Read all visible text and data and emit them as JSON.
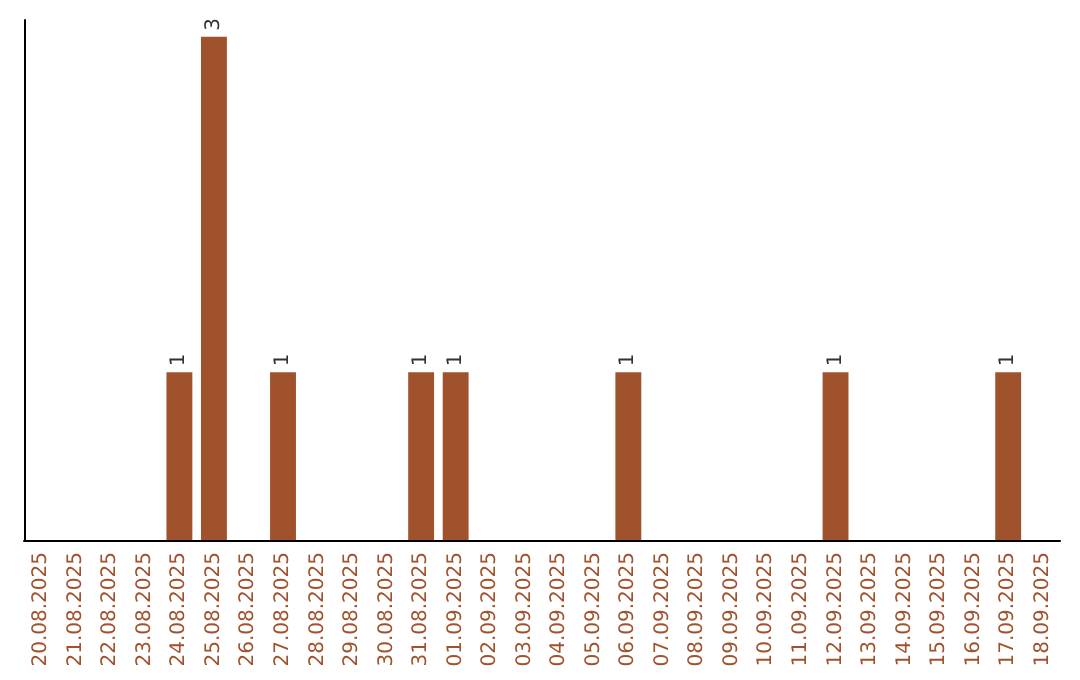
{
  "chart_data": {
    "type": "bar",
    "categories": [
      "20.08.2025",
      "21.08.2025",
      "22.08.2025",
      "23.08.2025",
      "24.08.2025",
      "25.08.2025",
      "26.08.2025",
      "27.08.2025",
      "28.08.2025",
      "29.08.2025",
      "30.08.2025",
      "31.08.2025",
      "01.09.2025",
      "02.09.2025",
      "03.09.2025",
      "04.09.2025",
      "05.09.2025",
      "06.09.2025",
      "07.09.2025",
      "08.09.2025",
      "09.09.2025",
      "10.09.2025",
      "11.09.2025",
      "12.09.2025",
      "13.09.2025",
      "14.09.2025",
      "15.09.2025",
      "16.09.2025",
      "17.09.2025",
      "18.09.2025"
    ],
    "values": [
      0,
      0,
      0,
      0,
      1,
      3,
      0,
      1,
      0,
      0,
      0,
      1,
      1,
      0,
      0,
      0,
      0,
      1,
      0,
      0,
      0,
      0,
      0,
      1,
      0,
      0,
      0,
      0,
      1,
      0
    ],
    "color": "#a0522d",
    "ylim": [
      0,
      3.1
    ],
    "value_labels": [
      null,
      null,
      null,
      null,
      "1",
      "3",
      null,
      "1",
      null,
      null,
      null,
      "1",
      "1",
      null,
      null,
      null,
      null,
      "1",
      null,
      null,
      null,
      null,
      null,
      "1",
      null,
      null,
      null,
      null,
      "1",
      null
    ],
    "grid": false,
    "tick_labels": "x"
  }
}
